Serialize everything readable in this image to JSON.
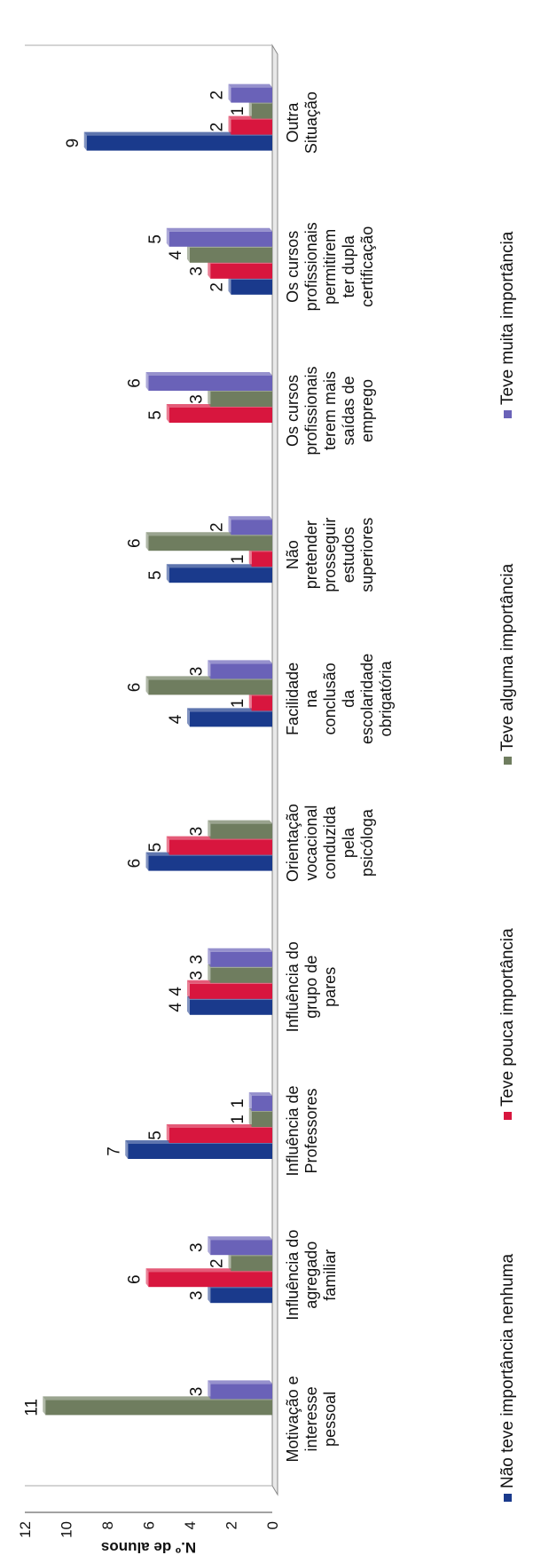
{
  "chart_data": {
    "type": "bar",
    "ylabel": "N.º de alunos",
    "yticks": [
      "0",
      "2",
      "4",
      "6",
      "8",
      "10",
      "12"
    ],
    "ylim": [
      0,
      12
    ],
    "grid": false,
    "legend_position": "bottom",
    "categories": [
      [
        "Motivação e",
        "interesse",
        "pessoal"
      ],
      [
        "Influência do",
        "agregado",
        "familiar"
      ],
      [
        "Influência de",
        "Professores"
      ],
      [
        "Influência do",
        "grupo de",
        "pares"
      ],
      [
        "Orientação",
        "vocacional",
        "conduzida",
        "pela",
        "psicóloga"
      ],
      [
        "Facilidade",
        "na",
        "conclusão",
        "da",
        "escolaridade",
        "obrigatória"
      ],
      [
        "Não",
        "pretender",
        "prosseguir",
        "estudos",
        "superiores"
      ],
      [
        "Os cursos",
        "profissionais",
        "terem mais",
        "saídas de",
        "emprego"
      ],
      [
        "Os cursos",
        "profissionais",
        "permitirem",
        "ter dupla",
        "certificação"
      ],
      [
        "Outra",
        "Situação"
      ]
    ],
    "series": [
      {
        "name": "Não teve importância nenhuma",
        "color": "#1a3a8c",
        "values": [
          null,
          3,
          7,
          4,
          6,
          4,
          5,
          null,
          2,
          9
        ]
      },
      {
        "name": "Teve pouca importância",
        "color": "#d8163e",
        "values": [
          null,
          6,
          5,
          4,
          5,
          1,
          1,
          5,
          3,
          2
        ]
      },
      {
        "name": "Teve alguma importância",
        "color": "#6f7d5f",
        "values": [
          11,
          2,
          1,
          3,
          3,
          6,
          6,
          3,
          4,
          1
        ]
      },
      {
        "name": "Teve muita importância",
        "color": "#6a62b8",
        "values": [
          3,
          3,
          1,
          3,
          null,
          3,
          2,
          6,
          5,
          2
        ]
      }
    ]
  }
}
